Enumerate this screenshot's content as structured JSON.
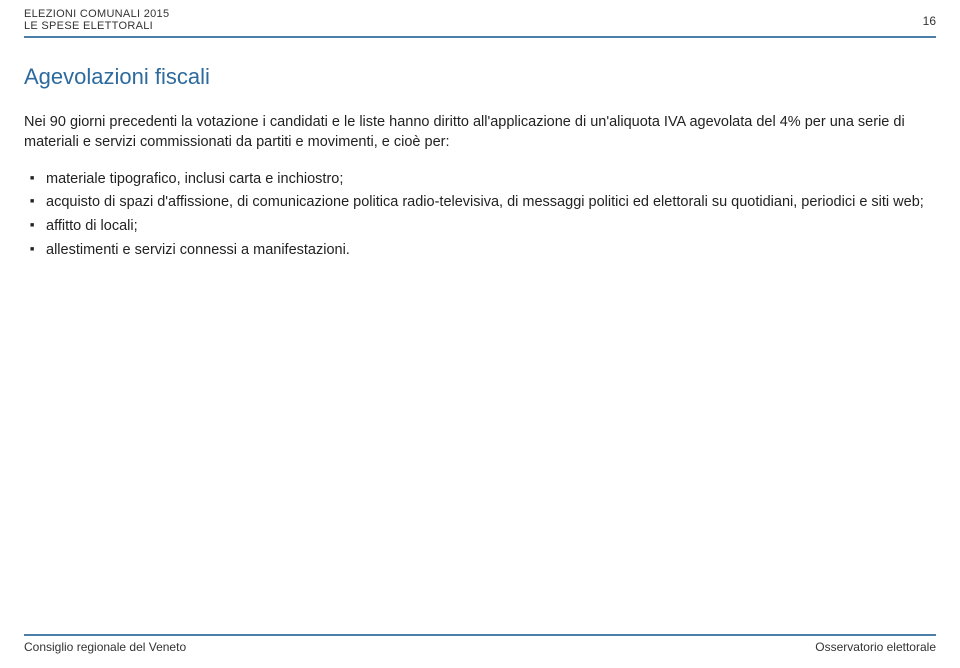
{
  "header": {
    "line1": "ELEZIONI COMUNALI 2015",
    "line2": "LE SPESE ELETTORALI",
    "page_number": "16"
  },
  "title": "Agevolazioni fiscali",
  "intro": "Nei 90 giorni precedenti la votazione i candidati e le liste hanno diritto all'applicazione di un'aliquota IVA agevolata del 4% per una serie di materiali e servizi commissionati da partiti e movimenti, e cioè per:",
  "bullets": [
    "materiale tipografico, inclusi carta e inchiostro;",
    "acquisto di spazi d'affissione, di comunicazione politica radio-televisiva, di messaggi politici ed elettorali su quotidiani, periodici e siti web;",
    "affitto di locali;",
    "allestimenti e servizi connessi a manifestazioni."
  ],
  "footer": {
    "left": "Consiglio regionale del Veneto",
    "right": "Osservatorio elettorale"
  },
  "colors": {
    "rule": "#4a7fa8",
    "title": "#2d6a9e",
    "text": "#222222",
    "background": "#ffffff"
  },
  "fonts": {
    "body_size_pt": 11,
    "title_size_pt": 17,
    "header_size_pt": 8
  }
}
